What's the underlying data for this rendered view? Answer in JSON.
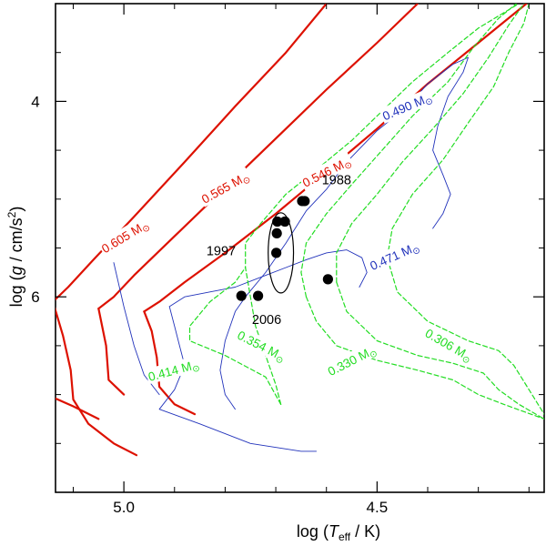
{
  "chart_data": {
    "type": "line",
    "title": "",
    "xlabel": {
      "prefix": "log (",
      "T": "T",
      "sub": "eff",
      "suffix": " / K)"
    },
    "ylabel": {
      "prefix": "log (",
      "g": "g",
      "mid": " / cm/s",
      "sup": "2",
      "suffix": ")"
    },
    "x_axis": {
      "range": [
        5.135,
        4.17
      ],
      "reversed": true,
      "major_ticks": [
        5.0,
        4.5
      ],
      "minor_ticks": [
        5.1,
        4.9,
        4.8,
        4.7,
        4.6,
        4.4,
        4.3,
        4.2
      ],
      "tick_labels": [
        "5.0",
        "4.5"
      ]
    },
    "y_axis": {
      "range": [
        3.0,
        8.0
      ],
      "inverted": true,
      "major_ticks": [
        4,
        6
      ],
      "minor_ticks": [
        3.5,
        4.5,
        5.0,
        5.5,
        6.5,
        7.0,
        7.5
      ],
      "tick_labels": [
        "4",
        "6"
      ]
    },
    "colors": {
      "red": "#dd1100",
      "green": "#22dd22",
      "blue": "#2233bb",
      "black": "#000000"
    },
    "series": [
      {
        "name": "0.605 M⊙",
        "color": "red",
        "style": "solid",
        "width": 2.2,
        "points": [
          [
            5.14,
            6.05
          ],
          [
            5.11,
            5.9
          ],
          [
            5.06,
            5.62
          ],
          [
            4.98,
            5.18
          ],
          [
            4.88,
            4.62
          ],
          [
            4.78,
            4.05
          ],
          [
            4.68,
            3.5
          ],
          [
            4.6,
            3.0
          ]
        ]
      },
      {
        "name": "0.605 M⊙ hook",
        "color": "red",
        "style": "solid",
        "width": 2.2,
        "points": [
          [
            5.14,
            6.05
          ],
          [
            5.12,
            6.4
          ],
          [
            5.105,
            6.75
          ],
          [
            5.1,
            7.05
          ],
          [
            5.07,
            7.3
          ],
          [
            5.02,
            7.5
          ],
          [
            4.975,
            7.62
          ]
        ]
      },
      {
        "name": "0.605 M⊙ low",
        "color": "red",
        "style": "solid",
        "width": 2.2,
        "points": [
          [
            5.135,
            7.04
          ],
          [
            5.1,
            7.12
          ],
          [
            5.05,
            7.25
          ]
        ]
      },
      {
        "name": "0.565 M⊙",
        "color": "red",
        "style": "solid",
        "width": 2.2,
        "points": [
          [
            5.05,
            6.12
          ],
          [
            5.02,
            6.0
          ],
          [
            4.98,
            5.78
          ],
          [
            4.9,
            5.38
          ],
          [
            4.8,
            4.88
          ],
          [
            4.7,
            4.38
          ],
          [
            4.6,
            3.88
          ],
          [
            4.5,
            3.4
          ],
          [
            4.42,
            3.0
          ]
        ]
      },
      {
        "name": "0.565 M⊙ hook",
        "color": "red",
        "style": "solid",
        "width": 2.2,
        "points": [
          [
            5.05,
            6.12
          ],
          [
            5.035,
            6.5
          ],
          [
            5.03,
            6.85
          ],
          [
            5.0,
            7.0
          ]
        ]
      },
      {
        "name": "0.546 M⊙",
        "color": "red",
        "style": "solid",
        "width": 2.2,
        "points": [
          [
            4.96,
            6.15
          ],
          [
            4.93,
            6.05
          ],
          [
            4.88,
            5.85
          ],
          [
            4.8,
            5.55
          ],
          [
            4.7,
            5.15
          ],
          [
            4.6,
            4.72
          ],
          [
            4.5,
            4.28
          ],
          [
            4.4,
            3.82
          ],
          [
            4.3,
            3.4
          ],
          [
            4.205,
            3.0
          ]
        ]
      },
      {
        "name": "0.546 M⊙ hook",
        "color": "red",
        "style": "solid",
        "width": 2.2,
        "points": [
          [
            4.96,
            6.15
          ],
          [
            4.945,
            6.35
          ],
          [
            4.935,
            6.62
          ],
          [
            4.93,
            6.92
          ],
          [
            4.9,
            7.1
          ],
          [
            4.86,
            7.2
          ]
        ]
      },
      {
        "name": "0.490 M⊙",
        "color": "blue",
        "style": "solid",
        "width": 0.9,
        "points": [
          [
            4.76,
            6.0
          ],
          [
            4.72,
            5.75
          ],
          [
            4.68,
            5.45
          ],
          [
            4.64,
            5.12
          ],
          [
            4.6,
            4.9
          ],
          [
            4.56,
            4.62
          ],
          [
            4.5,
            4.3
          ],
          [
            4.44,
            4.05
          ],
          [
            4.4,
            3.82
          ],
          [
            4.35,
            3.62
          ],
          [
            4.32,
            3.55
          ],
          [
            4.33,
            3.7
          ],
          [
            4.36,
            3.95
          ],
          [
            4.38,
            4.25
          ],
          [
            4.39,
            4.5
          ],
          [
            4.37,
            4.75
          ],
          [
            4.355,
            4.95
          ],
          [
            4.37,
            5.15
          ],
          [
            4.39,
            5.3
          ]
        ]
      },
      {
        "name": "0.490 M⊙ low",
        "color": "blue",
        "style": "solid",
        "width": 0.9,
        "points": [
          [
            4.76,
            6.0
          ],
          [
            4.78,
            6.15
          ],
          [
            4.8,
            6.45
          ],
          [
            4.81,
            6.75
          ],
          [
            4.8,
            7.0
          ],
          [
            4.78,
            7.15
          ]
        ]
      },
      {
        "name": "0.471 M⊙",
        "color": "blue",
        "style": "solid",
        "width": 0.9,
        "points": [
          [
            4.91,
            6.1
          ],
          [
            4.88,
            6.0
          ],
          [
            4.83,
            5.95
          ],
          [
            4.78,
            5.9
          ],
          [
            4.73,
            5.8
          ],
          [
            4.68,
            5.7
          ],
          [
            4.64,
            5.62
          ],
          [
            4.6,
            5.55
          ],
          [
            4.56,
            5.52
          ],
          [
            4.53,
            5.6
          ],
          [
            4.52,
            5.75
          ],
          [
            4.535,
            5.9
          ]
        ]
      },
      {
        "name": "0.471 M⊙ low",
        "color": "blue",
        "style": "solid",
        "width": 0.9,
        "points": [
          [
            4.91,
            6.1
          ],
          [
            4.9,
            6.3
          ],
          [
            4.89,
            6.5
          ],
          [
            4.88,
            6.7
          ],
          [
            4.9,
            6.95
          ],
          [
            4.93,
            7.15
          ],
          [
            4.85,
            7.3
          ],
          [
            4.75,
            7.5
          ],
          [
            4.65,
            7.58
          ],
          [
            4.62,
            7.58
          ]
        ]
      },
      {
        "name": "0.471 M⊙ tail",
        "color": "blue",
        "style": "solid",
        "width": 0.9,
        "points": [
          [
            5.02,
            5.65
          ],
          [
            5.0,
            6.1
          ],
          [
            4.98,
            6.5
          ],
          [
            4.96,
            6.8
          ],
          [
            4.93,
            7.0
          ]
        ]
      },
      {
        "name": "0.414 M⊙",
        "color": "green",
        "style": "dashed",
        "width": 1.2,
        "points": [
          [
            4.69,
            7.1
          ],
          [
            4.7,
            6.9
          ],
          [
            4.72,
            6.6
          ],
          [
            4.74,
            6.3
          ],
          [
            4.75,
            6.0
          ],
          [
            4.76,
            5.7
          ],
          [
            4.76,
            5.45
          ],
          [
            4.73,
            5.25
          ],
          [
            4.68,
            4.95
          ],
          [
            4.62,
            4.7
          ],
          [
            4.55,
            4.4
          ],
          [
            4.49,
            4.1
          ],
          [
            4.43,
            3.8
          ],
          [
            4.36,
            3.5
          ],
          [
            4.3,
            3.25
          ],
          [
            4.22,
            3.0
          ]
        ]
      },
      {
        "name": "0.414 M⊙ low",
        "color": "green",
        "style": "dashed",
        "width": 1.2,
        "points": [
          [
            4.69,
            7.1
          ],
          [
            4.72,
            6.82
          ],
          [
            4.8,
            6.6
          ],
          [
            4.87,
            6.45
          ],
          [
            4.87,
            6.3
          ],
          [
            4.83,
            6.05
          ],
          [
            4.78,
            5.85
          ],
          [
            4.76,
            5.7
          ]
        ]
      },
      {
        "name": "0.354 M⊙",
        "color": "green",
        "style": "dashed",
        "width": 1.2,
        "points": [
          [
            4.64,
            6.0
          ],
          [
            4.65,
            5.75
          ],
          [
            4.64,
            5.45
          ],
          [
            4.6,
            5.15
          ],
          [
            4.55,
            4.85
          ],
          [
            4.49,
            4.5
          ],
          [
            4.43,
            4.15
          ],
          [
            4.36,
            3.8
          ],
          [
            4.31,
            3.45
          ],
          [
            4.26,
            3.15
          ],
          [
            4.225,
            3.0
          ]
        ]
      },
      {
        "name": "0.354 M⊙ low",
        "color": "green",
        "style": "dashed",
        "width": 1.2,
        "points": [
          [
            4.64,
            6.0
          ],
          [
            4.62,
            6.25
          ],
          [
            4.58,
            6.5
          ],
          [
            4.5,
            6.65
          ],
          [
            4.42,
            6.75
          ],
          [
            4.35,
            6.85
          ],
          [
            4.3,
            7.0
          ],
          [
            4.25,
            7.1
          ],
          [
            4.17,
            7.25
          ]
        ]
      },
      {
        "name": "0.330 M⊙",
        "color": "green",
        "style": "dashed",
        "width": 1.2,
        "points": [
          [
            4.58,
            5.85
          ],
          [
            4.58,
            5.55
          ],
          [
            4.55,
            5.25
          ],
          [
            4.5,
            4.95
          ],
          [
            4.45,
            4.62
          ],
          [
            4.39,
            4.28
          ],
          [
            4.33,
            3.92
          ],
          [
            4.28,
            3.55
          ],
          [
            4.24,
            3.22
          ],
          [
            4.21,
            3.0
          ]
        ]
      },
      {
        "name": "0.330 M⊙ low",
        "color": "green",
        "style": "dashed",
        "width": 1.2,
        "points": [
          [
            4.58,
            5.85
          ],
          [
            4.56,
            6.15
          ],
          [
            4.5,
            6.45
          ],
          [
            4.42,
            6.6
          ],
          [
            4.35,
            6.68
          ],
          [
            4.29,
            6.78
          ],
          [
            4.26,
            6.95
          ],
          [
            4.22,
            7.1
          ],
          [
            4.17,
            7.25
          ]
        ]
      },
      {
        "name": "0.306 M⊙",
        "color": "green",
        "style": "dashed",
        "width": 1.2,
        "points": [
          [
            4.48,
            5.6
          ],
          [
            4.47,
            5.3
          ],
          [
            4.43,
            4.95
          ],
          [
            4.37,
            4.6
          ],
          [
            4.32,
            4.22
          ],
          [
            4.27,
            3.85
          ],
          [
            4.24,
            3.5
          ],
          [
            4.21,
            3.2
          ],
          [
            4.2,
            3.0
          ]
        ]
      },
      {
        "name": "0.306 M⊙ low",
        "color": "green",
        "style": "dashed",
        "width": 1.2,
        "points": [
          [
            4.48,
            5.6
          ],
          [
            4.46,
            5.95
          ],
          [
            4.4,
            6.25
          ],
          [
            4.32,
            6.45
          ],
          [
            4.26,
            6.55
          ],
          [
            4.23,
            6.7
          ],
          [
            4.2,
            6.95
          ],
          [
            4.17,
            7.2
          ]
        ]
      }
    ],
    "track_labels": [
      {
        "text": "0.605 M",
        "sun": "⊙",
        "at": [
          4.998,
          5.38
        ],
        "angle": -31,
        "color": "red"
      },
      {
        "text": "0.565 M",
        "sun": "⊙",
        "at": [
          4.8,
          4.88
        ],
        "angle": -29,
        "color": "red"
      },
      {
        "text": "0.546 M",
        "sun": "⊙",
        "at": [
          4.6,
          4.72
        ],
        "angle": -27,
        "color": "red"
      },
      {
        "text": "0.490 M",
        "sun": "⊙",
        "at": [
          4.441,
          4.05
        ],
        "angle": -23,
        "color": "blue"
      },
      {
        "text": "0.471 M",
        "sun": "⊙",
        "at": [
          4.466,
          5.58
        ],
        "angle": -24,
        "color": "blue"
      },
      {
        "text": "0.414 M",
        "sun": "⊙",
        "at": [
          4.902,
          6.75
        ],
        "angle": -15,
        "color": "green"
      },
      {
        "text": "0.354 M",
        "sun": "⊙",
        "at": [
          4.728,
          6.5
        ],
        "angle": 27,
        "color": "green"
      },
      {
        "text": "0.330 M",
        "sun": "⊙",
        "at": [
          4.55,
          6.65
        ],
        "angle": -27,
        "color": "green"
      },
      {
        "text": "0.306 M",
        "sun": "⊙",
        "at": [
          4.358,
          6.49
        ],
        "angle": 30,
        "color": "green"
      }
    ],
    "observations": [
      {
        "teff": 4.597,
        "logg": 5.82
      },
      {
        "teff": 4.643,
        "logg": 5.02
      },
      {
        "teff": 4.648,
        "logg": 5.02
      },
      {
        "teff": 4.682,
        "logg": 5.23
      },
      {
        "teff": 4.697,
        "logg": 5.23
      },
      {
        "teff": 4.698,
        "logg": 5.35
      },
      {
        "teff": 4.699,
        "logg": 5.55
      },
      {
        "teff": 4.735,
        "logg": 5.99
      },
      {
        "teff": 4.768,
        "logg": 5.99
      }
    ],
    "observation_ellipse": {
      "center": [
        4.69,
        5.55
      ],
      "rx": 0.025,
      "ry": 0.41
    },
    "observation_labels": [
      {
        "text": "1988",
        "at": [
          4.58,
          4.8
        ]
      },
      {
        "text": "1997",
        "at": [
          4.808,
          5.53
        ]
      },
      {
        "text": "2006",
        "at": [
          4.718,
          6.23
        ]
      }
    ]
  }
}
